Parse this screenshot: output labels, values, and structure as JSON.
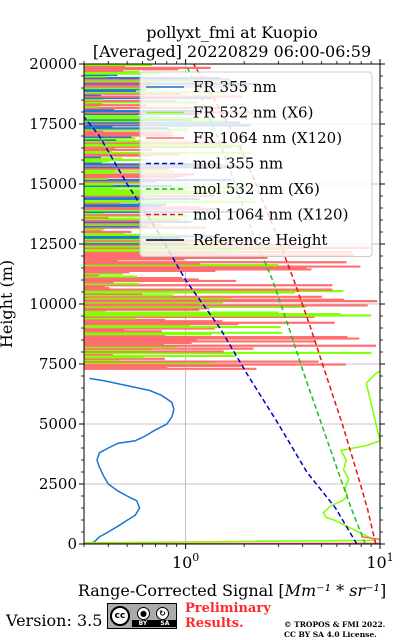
{
  "chart_data": {
    "type": "line",
    "title": "pollyxt_fmi at Kuopio",
    "subtitle": "[Averaged] 20220829 06:00-06:59",
    "xlabel_prefix": "Range-Corrected Signal [",
    "xlabel_math": "Mm⁻¹ * sr⁻¹",
    "xlabel_suffix": "]",
    "ylabel": "Height (m)",
    "xscale": "log",
    "xlim": [
      0.3,
      10
    ],
    "ylim": [
      0,
      20000
    ],
    "grid": true,
    "legend_position": "top-right",
    "x_ticks": [
      {
        "value": 1,
        "base": "10",
        "exp": "0"
      },
      {
        "value": 10,
        "base": "10",
        "exp": "1"
      }
    ],
    "y_ticks": [
      {
        "value": 0,
        "label": "0"
      },
      {
        "value": 2500,
        "label": "2500"
      },
      {
        "value": 5000,
        "label": "5000"
      },
      {
        "value": 7500,
        "label": "7500"
      },
      {
        "value": 10000,
        "label": "10000"
      },
      {
        "value": 12500,
        "label": "12500"
      },
      {
        "value": 15000,
        "label": "15000"
      },
      {
        "value": 17500,
        "label": "17500"
      },
      {
        "value": 20000,
        "label": "20000"
      }
    ],
    "series": [
      {
        "name": "FR 355 nm",
        "color": "#1a75d1",
        "style": "solid",
        "points": [
          [
            0.32,
            0
          ],
          [
            0.34,
            100
          ],
          [
            0.36,
            300
          ],
          [
            0.4,
            500
          ],
          [
            0.46,
            800
          ],
          [
            0.55,
            1200
          ],
          [
            0.58,
            1500
          ],
          [
            0.56,
            1800
          ],
          [
            0.5,
            2000
          ],
          [
            0.45,
            2200
          ],
          [
            0.4,
            2500
          ],
          [
            0.38,
            2800
          ],
          [
            0.36,
            3200
          ],
          [
            0.35,
            3500
          ],
          [
            0.36,
            3800
          ],
          [
            0.4,
            4000
          ],
          [
            0.45,
            4200
          ],
          [
            0.55,
            4300
          ],
          [
            0.62,
            4500
          ],
          [
            0.68,
            4700
          ],
          [
            0.8,
            5000
          ],
          [
            0.85,
            5300
          ],
          [
            0.87,
            5600
          ],
          [
            0.85,
            5900
          ],
          [
            0.75,
            6200
          ],
          [
            0.65,
            6400
          ],
          [
            0.5,
            6600
          ],
          [
            0.38,
            6800
          ],
          [
            0.32,
            6900
          ]
        ]
      },
      {
        "name": "FR 532 nm (X6)",
        "color": "#80ff00",
        "style": "solid",
        "points": [
          [
            0.3,
            50
          ],
          [
            9.5,
            150
          ],
          [
            5.8,
            1000
          ],
          [
            5.3,
            1100
          ],
          [
            5.1,
            1300
          ],
          [
            5.6,
            1600
          ],
          [
            6.4,
            1800
          ],
          [
            6.8,
            2000
          ],
          [
            6.6,
            2300
          ],
          [
            6.9,
            2700
          ],
          [
            6.5,
            3100
          ],
          [
            6.7,
            3500
          ],
          [
            6.3,
            3900
          ],
          [
            8.5,
            4100
          ],
          [
            10,
            4300
          ],
          [
            8.5,
            6700
          ],
          [
            9.5,
            7100
          ],
          [
            10,
            7200
          ]
        ]
      },
      {
        "name": "FR 1064 nm (X120)",
        "color": "#ff6a6a",
        "style": "solid",
        "points": [
          [
            0.3,
            10
          ],
          [
            10,
            30
          ],
          [
            10,
            200
          ],
          [
            8,
            300
          ]
        ]
      },
      {
        "name": "mol 355 nm",
        "color": "#0000cc",
        "style": "dashed",
        "points": [
          [
            7.6,
            0
          ],
          [
            5.9,
            1500
          ],
          [
            4.2,
            3000
          ],
          [
            3.0,
            5000
          ],
          [
            2.1,
            7000
          ],
          [
            1.5,
            9000
          ],
          [
            1.0,
            11000
          ],
          [
            0.72,
            13000
          ],
          [
            0.5,
            15000
          ],
          [
            0.36,
            17000
          ],
          [
            0.3,
            17800
          ]
        ]
      },
      {
        "name": "mol 532 nm (X6)",
        "color": "#22bb22",
        "style": "dashed",
        "points": [
          [
            8.4,
            0
          ],
          [
            7.1,
            1500
          ],
          [
            6.1,
            3000
          ],
          [
            5.0,
            5000
          ],
          [
            4.1,
            7000
          ],
          [
            3.4,
            9000
          ],
          [
            2.8,
            11000
          ],
          [
            2.2,
            13000
          ],
          [
            1.8,
            15000
          ],
          [
            1.45,
            17000
          ],
          [
            1.15,
            19000
          ],
          [
            1.0,
            20000
          ]
        ]
      },
      {
        "name": "mol 1064 nm (X120)",
        "color": "#ee1111",
        "style": "dashed",
        "points": [
          [
            9.5,
            0
          ],
          [
            8.6,
            1500
          ],
          [
            7.6,
            3000
          ],
          [
            6.4,
            5000
          ],
          [
            5.3,
            7000
          ],
          [
            4.4,
            9000
          ],
          [
            3.6,
            11000
          ],
          [
            2.9,
            13000
          ],
          [
            2.3,
            15000
          ],
          [
            1.8,
            17000
          ],
          [
            1.3,
            19000
          ],
          [
            1.1,
            20000
          ]
        ]
      },
      {
        "name": "Reference Height",
        "color": "#000000",
        "style": "solid",
        "points": []
      }
    ],
    "noise_region": {
      "from_m": 7300,
      "to_m": 20000
    }
  },
  "footer": {
    "version": "Version: 3.5",
    "cc_labels": [
      "BY",
      "SA"
    ],
    "preliminary_line1": "Preliminary",
    "preliminary_line2": "Results.",
    "copyright_line1": "© TROPOS & FMI 2022.",
    "copyright_line2": "CC BY SA 4.0 License."
  }
}
